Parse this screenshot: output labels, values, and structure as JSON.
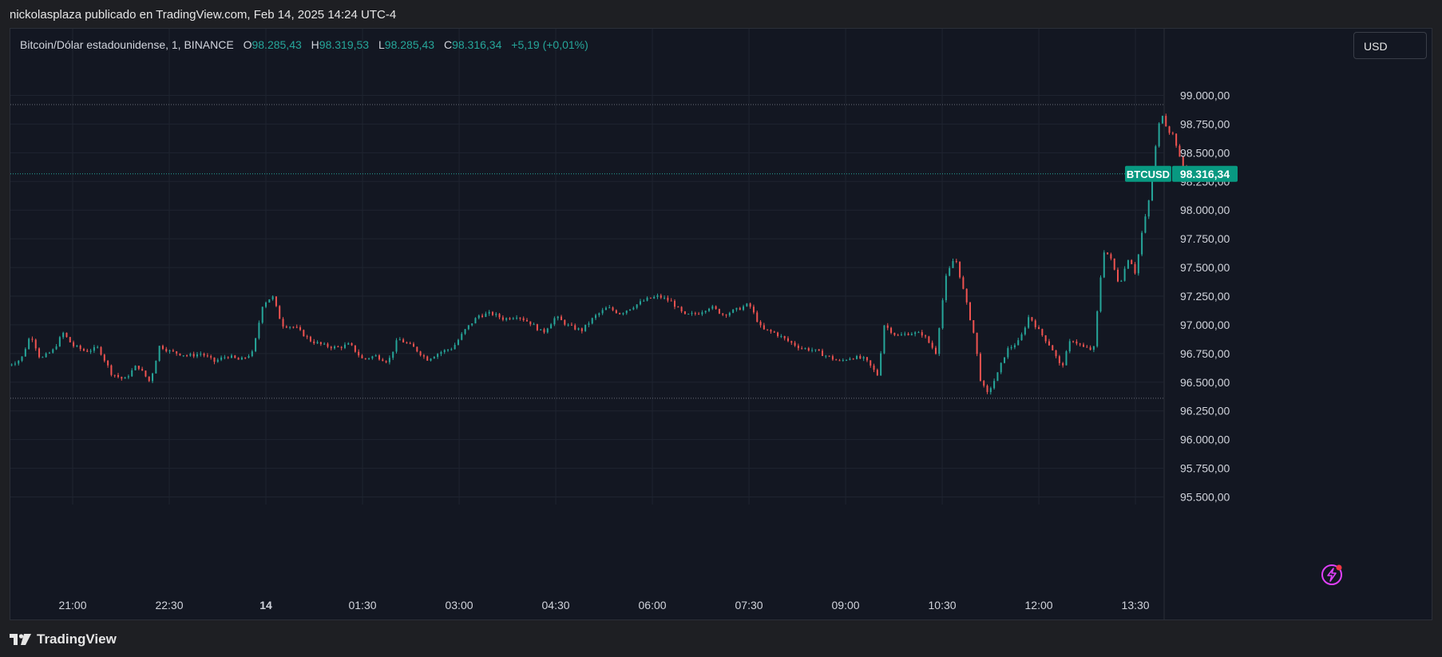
{
  "header": {
    "publish_line": "nickolasplaza publicado en TradingView.com, Feb 14, 2025 14:24 UTC-4"
  },
  "legend": {
    "instrument": "Bitcoin/Dólar estadounidense, 1, BINANCE",
    "open_label": "O",
    "open": "98.285,43",
    "high_label": "H",
    "high": "98.319,53",
    "low_label": "L",
    "low": "98.285,43",
    "close_label": "C",
    "close": "98.316,34",
    "change": "+5,19 (+0,01%)"
  },
  "currency": {
    "label": "USD"
  },
  "footer": {
    "brand": "TradingView"
  },
  "colors": {
    "background": "#131722",
    "up": "#26a69a",
    "down": "#ef5350",
    "grid": "#1f2430",
    "text": "#d1d4dc",
    "price_tag": "#089981",
    "bolt": "#e040fb"
  },
  "icons": {
    "bolt": "lightning-bolt-icon",
    "logo": "tradingview-logo-icon"
  },
  "chart_data": {
    "type": "candlestick",
    "symbol_tag": "BTCUSD",
    "last_price": 98316.34,
    "last_price_label": "98.316,34",
    "ylim": [
      95400,
      99200
    ],
    "yticks": [
      95500,
      95750,
      96000,
      96250,
      96500,
      96750,
      97000,
      97250,
      97500,
      97750,
      98000,
      98250,
      98500,
      98750,
      99000
    ],
    "ytick_labels": [
      "95.500,00",
      "95.750,00",
      "96.000,00",
      "96.250,00",
      "96.500,00",
      "96.750,00",
      "97.000,00",
      "97.250,00",
      "97.500,00",
      "97.750,00",
      "98.000,00",
      "98.250,00",
      "98.500,00",
      "98.750,00",
      "99.000,00"
    ],
    "x_range_hours": [
      20.0,
      14.5
    ],
    "xticks": [
      {
        "t": 21.0,
        "label": "21:00"
      },
      {
        "t": 22.5,
        "label": "22:30"
      },
      {
        "t": 24.0,
        "label": "14",
        "bold": true
      },
      {
        "t": 25.5,
        "label": "01:30"
      },
      {
        "t": 27.0,
        "label": "03:00"
      },
      {
        "t": 28.5,
        "label": "04:30"
      },
      {
        "t": 30.0,
        "label": "06:00"
      },
      {
        "t": 31.5,
        "label": "07:30"
      },
      {
        "t": 33.0,
        "label": "09:00"
      },
      {
        "t": 34.5,
        "label": "10:30"
      },
      {
        "t": 36.0,
        "label": "12:00"
      },
      {
        "t": 37.5,
        "label": "13:30"
      }
    ],
    "high_line": 98920,
    "low_line": 96360,
    "price_path": [
      [
        20.0,
        96650
      ],
      [
        20.2,
        96700
      ],
      [
        20.35,
        96920
      ],
      [
        20.5,
        96700
      ],
      [
        20.7,
        96780
      ],
      [
        20.85,
        96930
      ],
      [
        21.0,
        96820
      ],
      [
        21.2,
        96770
      ],
      [
        21.4,
        96800
      ],
      [
        21.6,
        96580
      ],
      [
        21.8,
        96520
      ],
      [
        22.0,
        96650
      ],
      [
        22.2,
        96500
      ],
      [
        22.35,
        96820
      ],
      [
        22.5,
        96770
      ],
      [
        22.8,
        96730
      ],
      [
        23.0,
        96750
      ],
      [
        23.2,
        96680
      ],
      [
        23.4,
        96730
      ],
      [
        23.6,
        96690
      ],
      [
        23.8,
        96760
      ],
      [
        23.95,
        97180
      ],
      [
        24.1,
        97250
      ],
      [
        24.25,
        97000
      ],
      [
        24.45,
        96980
      ],
      [
        24.7,
        96860
      ],
      [
        24.9,
        96820
      ],
      [
        25.1,
        96800
      ],
      [
        25.3,
        96830
      ],
      [
        25.5,
        96700
      ],
      [
        25.7,
        96730
      ],
      [
        25.9,
        96680
      ],
      [
        26.05,
        96880
      ],
      [
        26.3,
        96800
      ],
      [
        26.5,
        96700
      ],
      [
        26.7,
        96760
      ],
      [
        26.9,
        96800
      ],
      [
        27.1,
        96960
      ],
      [
        27.3,
        97080
      ],
      [
        27.5,
        97100
      ],
      [
        27.7,
        97050
      ],
      [
        27.9,
        97080
      ],
      [
        28.1,
        97020
      ],
      [
        28.3,
        96930
      ],
      [
        28.5,
        97070
      ],
      [
        28.7,
        96990
      ],
      [
        28.9,
        96950
      ],
      [
        29.1,
        97070
      ],
      [
        29.3,
        97150
      ],
      [
        29.5,
        97100
      ],
      [
        29.7,
        97160
      ],
      [
        29.9,
        97220
      ],
      [
        30.1,
        97250
      ],
      [
        30.3,
        97200
      ],
      [
        30.5,
        97080
      ],
      [
        30.7,
        97100
      ],
      [
        30.9,
        97160
      ],
      [
        31.1,
        97090
      ],
      [
        31.3,
        97130
      ],
      [
        31.5,
        97180
      ],
      [
        31.7,
        96960
      ],
      [
        31.9,
        96930
      ],
      [
        32.1,
        96860
      ],
      [
        32.3,
        96800
      ],
      [
        32.5,
        96780
      ],
      [
        32.7,
        96730
      ],
      [
        32.9,
        96680
      ],
      [
        33.1,
        96720
      ],
      [
        33.3,
        96700
      ],
      [
        33.5,
        96560
      ],
      [
        33.6,
        97000
      ],
      [
        33.8,
        96900
      ],
      [
        34.0,
        96930
      ],
      [
        34.2,
        96920
      ],
      [
        34.4,
        96760
      ],
      [
        34.55,
        97400
      ],
      [
        34.7,
        97600
      ],
      [
        34.85,
        97250
      ],
      [
        35.0,
        96900
      ],
      [
        35.1,
        96500
      ],
      [
        35.2,
        96400
      ],
      [
        35.35,
        96560
      ],
      [
        35.5,
        96780
      ],
      [
        35.7,
        96860
      ],
      [
        35.85,
        97080
      ],
      [
        36.0,
        96950
      ],
      [
        36.2,
        96800
      ],
      [
        36.35,
        96620
      ],
      [
        36.5,
        96880
      ],
      [
        36.7,
        96800
      ],
      [
        36.85,
        96780
      ],
      [
        37.0,
        97650
      ],
      [
        37.1,
        97600
      ],
      [
        37.25,
        97350
      ],
      [
        37.4,
        97600
      ],
      [
        37.5,
        97450
      ],
      [
        37.6,
        97800
      ],
      [
        37.7,
        98050
      ],
      [
        37.8,
        98500
      ],
      [
        37.9,
        98870
      ],
      [
        38.0,
        98700
      ],
      [
        38.1,
        98650
      ],
      [
        38.2,
        98420
      ],
      [
        38.3,
        98316
      ]
    ]
  }
}
